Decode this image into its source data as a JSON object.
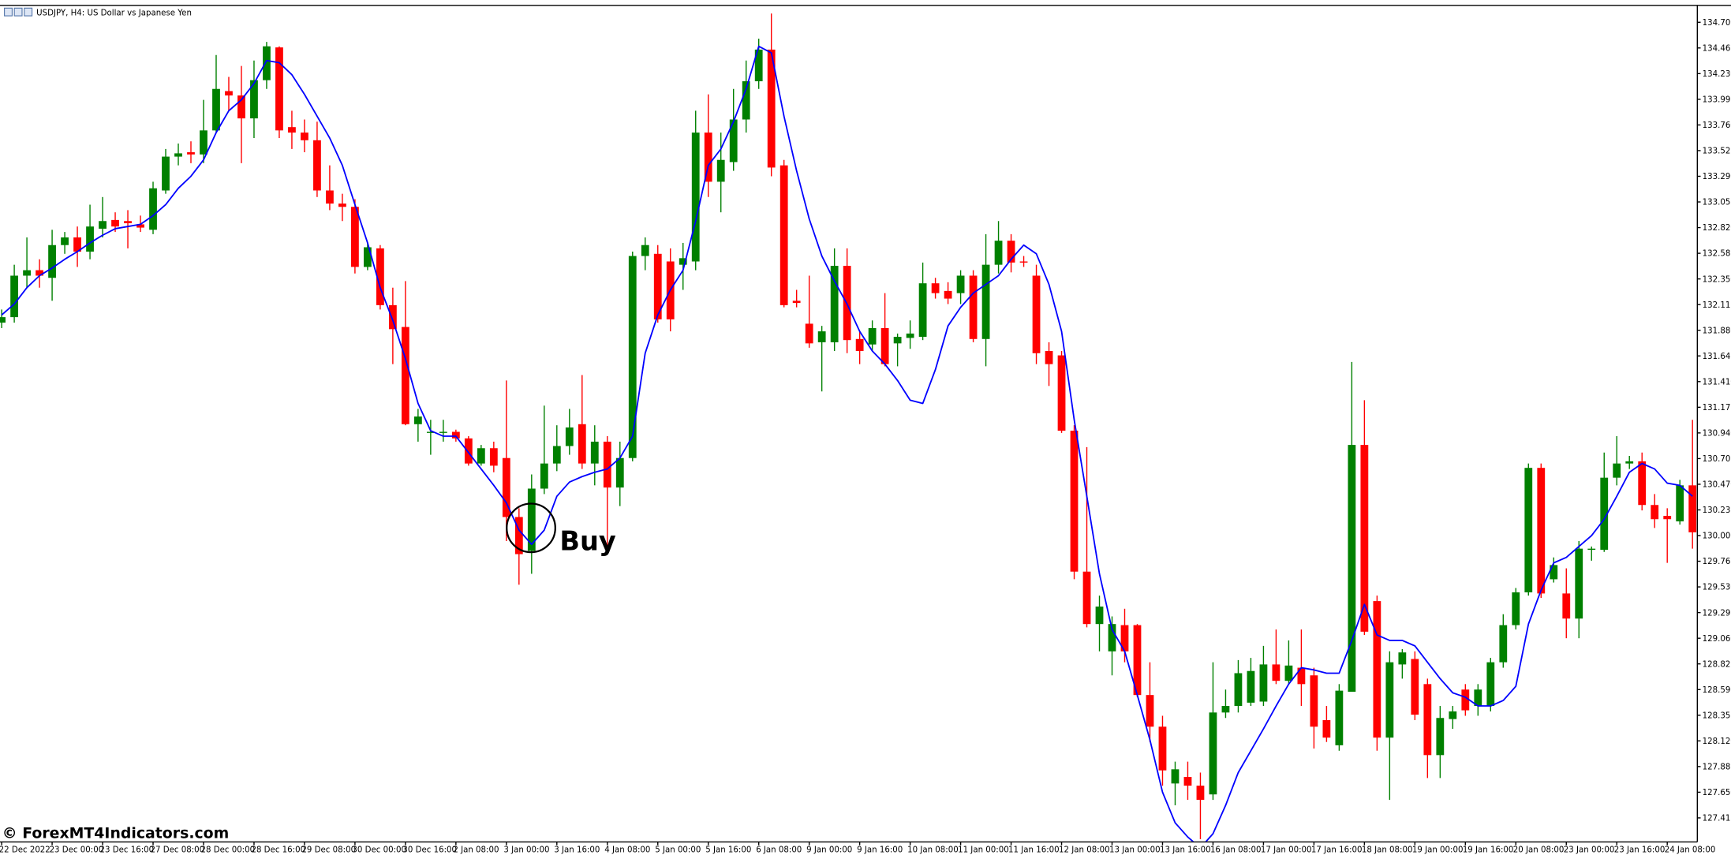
{
  "chart_data": {
    "type": "candlestick",
    "title": "USDJPY, H4:  US Dollar vs Japanese Yen",
    "annotation": "Buy",
    "up_color": "#008000",
    "down_color": "#ff0000",
    "categories": [
      "22 Dec 2022",
      null,
      null,
      null,
      "23 Dec 00:00",
      null,
      null,
      null,
      "23 Dec 16:00",
      null,
      null,
      null,
      "27 Dec 08:00",
      null,
      null,
      null,
      "28 Dec 00:00",
      null,
      null,
      null,
      "28 Dec 16:00",
      null,
      null,
      null,
      "29 Dec 08:00",
      null,
      null,
      null,
      "30 Dec 00:00",
      null,
      null,
      null,
      "30 Dec 16:00",
      null,
      null,
      null,
      "2 Jan 08:00",
      null,
      null,
      null,
      "3 Jan 00:00",
      null,
      null,
      null,
      "3 Jan 16:00",
      null,
      null,
      null,
      "4 Jan 08:00",
      null,
      null,
      null,
      "5 Jan 00:00",
      null,
      null,
      null,
      "5 Jan 16:00",
      null,
      null,
      null,
      "6 Jan 08:00",
      null,
      null,
      null,
      "9 Jan 00:00",
      null,
      null,
      null,
      "9 Jan 16:00",
      null,
      null,
      null,
      "10 Jan 08:00",
      null,
      null,
      null,
      "11 Jan 00:00",
      null,
      null,
      null,
      "11 Jan 16:00",
      null,
      null,
      null,
      "12 Jan 08:00",
      null,
      null,
      null,
      "13 Jan 00:00",
      null,
      null,
      null,
      "13 Jan 16:00",
      null,
      null,
      null,
      "16 Jan 08:00",
      null,
      null,
      null,
      "17 Jan 00:00",
      null,
      null,
      null,
      "17 Jan 16:00",
      null,
      null,
      null,
      "18 Jan 08:00",
      null,
      null,
      null,
      "19 Jan 00:00",
      null,
      null,
      null,
      "19 Jan 16:00",
      null,
      null,
      null,
      "20 Jan 08:00",
      null,
      null,
      null,
      "23 Jan 00:00",
      null,
      null,
      null,
      "23 Jan 16:00",
      null,
      null,
      null,
      "24 Jan 08:00",
      null,
      null
    ],
    "open": [
      131.95,
      132.0,
      132.38,
      132.43,
      132.36,
      132.66,
      132.73,
      132.6,
      132.81,
      132.89,
      132.88,
      132.85,
      132.8,
      133.16,
      133.47,
      133.51,
      133.49,
      133.71,
      134.07,
      134.03,
      133.82,
      134.17,
      134.47,
      133.74,
      133.69,
      133.62,
      133.16,
      133.04,
      133.01,
      132.46,
      132.63,
      132.11,
      131.91,
      131.02,
      130.94,
      130.94,
      130.95,
      130.89,
      130.66,
      130.8,
      130.71,
      130.17,
      129.86,
      130.43,
      130.66,
      130.82,
      131.02,
      130.66,
      130.86,
      130.44,
      130.71,
      132.56,
      132.58,
      132.51,
      132.48,
      132.51,
      133.69,
      133.24,
      133.42,
      133.81,
      134.16,
      134.45,
      133.39,
      132.15,
      131.94,
      131.77,
      131.77,
      132.47,
      131.8,
      131.75,
      131.9,
      131.76,
      131.81,
      131.82,
      132.31,
      132.24,
      132.22,
      132.38,
      131.8,
      132.48,
      132.7,
      132.51,
      132.38,
      131.69,
      131.65,
      130.96,
      129.67,
      129.19,
      128.94,
      129.18,
      129.18,
      128.54,
      128.25,
      127.73,
      127.79,
      127.71,
      127.63,
      128.38,
      128.44,
      128.47,
      128.48,
      128.82,
      128.67,
      128.79,
      128.72,
      128.31,
      128.08,
      128.57,
      130.83,
      129.4,
      128.15,
      128.82,
      128.87,
      128.64,
      127.99,
      128.32,
      128.59,
      128.44,
      128.44,
      128.84,
      129.18,
      129.48,
      130.62,
      129.6,
      129.47,
      129.24,
      129.87,
      129.87,
      130.53,
      130.66,
      130.68,
      130.28,
      130.18,
      130.13,
      130.46
    ],
    "high": [
      132.07,
      132.48,
      132.73,
      132.53,
      132.8,
      132.78,
      132.83,
      133.03,
      133.1,
      132.96,
      132.98,
      132.93,
      133.24,
      133.54,
      133.59,
      133.61,
      133.99,
      134.4,
      134.2,
      134.3,
      134.35,
      134.52,
      134.48,
      133.89,
      133.81,
      133.79,
      133.39,
      133.13,
      133.08,
      132.68,
      132.66,
      132.27,
      132.33,
      131.16,
      131.06,
      131.06,
      130.97,
      130.91,
      130.83,
      130.86,
      131.42,
      130.25,
      130.56,
      131.19,
      131.01,
      131.16,
      131.47,
      131.01,
      130.91,
      130.86,
      132.6,
      132.73,
      132.66,
      132.63,
      132.68,
      133.89,
      134.04,
      133.69,
      134.09,
      134.35,
      134.55,
      134.78,
      133.44,
      132.25,
      132.38,
      131.92,
      132.63,
      132.63,
      131.87,
      131.97,
      132.22,
      131.85,
      131.97,
      132.5,
      132.36,
      132.32,
      132.43,
      132.43,
      132.76,
      132.88,
      132.76,
      132.56,
      132.48,
      131.77,
      131.69,
      131.01,
      130.81,
      129.45,
      129.26,
      129.33,
      129.19,
      128.84,
      128.35,
      127.93,
      127.93,
      127.83,
      128.84,
      128.59,
      128.86,
      128.88,
      128.99,
      129.14,
      129.04,
      129.14,
      128.79,
      128.44,
      128.64,
      131.59,
      131.24,
      129.45,
      128.94,
      128.96,
      128.94,
      128.69,
      128.44,
      128.44,
      128.64,
      128.64,
      128.88,
      129.28,
      129.52,
      130.66,
      130.66,
      129.8,
      129.7,
      129.95,
      129.9,
      130.76,
      130.91,
      130.73,
      130.76,
      130.38,
      130.25,
      130.51,
      131.06
    ],
    "low": [
      131.9,
      131.95,
      132.27,
      132.27,
      132.15,
      132.58,
      132.46,
      132.53,
      132.73,
      132.78,
      132.63,
      132.78,
      132.76,
      133.13,
      133.39,
      133.41,
      133.41,
      133.69,
      133.89,
      133.41,
      133.64,
      134.09,
      133.64,
      133.54,
      133.51,
      133.1,
      132.98,
      132.88,
      132.4,
      132.43,
      132.07,
      131.57,
      131.01,
      130.86,
      130.74,
      130.86,
      130.86,
      130.64,
      130.64,
      130.58,
      129.95,
      129.55,
      129.65,
      130.38,
      130.59,
      130.74,
      130.61,
      130.46,
      129.85,
      130.27,
      130.68,
      132.43,
      131.95,
      131.87,
      132.25,
      132.43,
      133.1,
      132.96,
      133.34,
      133.69,
      134.09,
      133.29,
      132.09,
      132.09,
      131.72,
      131.32,
      131.69,
      131.67,
      131.57,
      131.69,
      131.55,
      131.55,
      131.71,
      131.79,
      132.17,
      132.12,
      132.12,
      131.77,
      131.55,
      132.4,
      132.41,
      132.46,
      131.57,
      131.37,
      130.94,
      129.6,
      129.16,
      128.94,
      128.72,
      128.84,
      128.52,
      128.11,
      127.71,
      127.53,
      127.58,
      127.22,
      127.58,
      128.33,
      128.38,
      128.44,
      128.44,
      128.64,
      128.64,
      128.44,
      128.05,
      128.11,
      128.03,
      128.57,
      129.09,
      128.03,
      127.58,
      128.69,
      128.31,
      127.78,
      127.78,
      128.23,
      128.35,
      128.35,
      128.39,
      128.79,
      129.14,
      129.45,
      129.43,
      129.57,
      129.06,
      129.06,
      129.77,
      129.85,
      130.46,
      130.61,
      130.23,
      130.07,
      129.75,
      130.1,
      129.88
    ],
    "close": [
      132.0,
      132.38,
      132.43,
      132.38,
      132.66,
      132.73,
      132.6,
      132.83,
      132.88,
      132.83,
      132.86,
      132.82,
      133.18,
      133.47,
      133.5,
      133.49,
      133.71,
      134.09,
      134.03,
      133.82,
      134.17,
      134.48,
      133.71,
      133.69,
      133.62,
      133.16,
      133.04,
      133.01,
      132.46,
      132.64,
      132.11,
      131.89,
      131.02,
      131.09,
      130.95,
      130.95,
      130.89,
      130.66,
      130.8,
      130.64,
      130.17,
      129.83,
      130.43,
      130.66,
      130.82,
      130.99,
      130.66,
      130.86,
      130.44,
      130.71,
      132.56,
      132.66,
      131.98,
      131.98,
      132.54,
      133.69,
      133.24,
      133.44,
      133.81,
      134.16,
      134.45,
      133.37,
      132.11,
      132.13,
      131.76,
      131.87,
      132.47,
      131.79,
      131.69,
      131.9,
      131.57,
      131.82,
      131.85,
      132.31,
      132.22,
      132.17,
      132.38,
      131.8,
      132.48,
      132.7,
      132.5,
      132.5,
      131.67,
      131.57,
      130.96,
      129.67,
      129.19,
      129.35,
      129.19,
      128.94,
      128.54,
      128.25,
      127.85,
      127.86,
      127.71,
      127.58,
      128.38,
      128.44,
      128.74,
      128.76,
      128.82,
      128.67,
      128.81,
      128.64,
      128.25,
      128.15,
      128.58,
      130.83,
      129.12,
      128.15,
      128.84,
      128.93,
      128.36,
      127.99,
      128.33,
      128.39,
      128.4,
      128.59,
      128.84,
      129.18,
      129.48,
      130.62,
      129.47,
      129.73,
      129.24,
      129.88,
      129.88,
      130.53,
      130.66,
      130.68,
      130.28,
      130.15,
      130.15,
      130.46,
      130.03
    ],
    "line": {
      "color": "#0000ff",
      "values": [
        132.02,
        132.12,
        132.27,
        132.38,
        132.45,
        132.53,
        132.6,
        132.68,
        132.75,
        132.81,
        132.83,
        132.85,
        132.93,
        133.03,
        133.18,
        133.29,
        133.44,
        133.69,
        133.89,
        133.99,
        134.14,
        134.35,
        134.33,
        134.22,
        134.04,
        133.84,
        133.64,
        133.39,
        133.03,
        132.68,
        132.27,
        131.97,
        131.62,
        131.21,
        130.96,
        130.91,
        130.91,
        130.76,
        130.61,
        130.46,
        130.3,
        130.05,
        129.92,
        130.05,
        130.36,
        130.49,
        130.54,
        130.58,
        130.61,
        130.71,
        130.91,
        131.67,
        132.02,
        132.25,
        132.43,
        132.88,
        133.39,
        133.54,
        133.79,
        134.09,
        134.48,
        134.42,
        133.84,
        133.34,
        132.9,
        132.56,
        132.33,
        132.12,
        131.87,
        131.69,
        131.57,
        131.42,
        131.24,
        131.21,
        131.52,
        131.92,
        132.09,
        132.22,
        132.3,
        132.38,
        132.53,
        132.66,
        132.58,
        132.3,
        131.87,
        131.06,
        130.36,
        129.65,
        129.14,
        128.94,
        128.54,
        128.13,
        127.65,
        127.37,
        127.24,
        127.14,
        127.27,
        127.53,
        127.83,
        128.03,
        128.23,
        128.44,
        128.64,
        128.79,
        128.77,
        128.74,
        128.74,
        129.04,
        129.37,
        129.09,
        129.04,
        129.04,
        128.99,
        128.84,
        128.69,
        128.56,
        128.52,
        128.44,
        128.44,
        128.49,
        128.62,
        129.19,
        129.5,
        129.75,
        129.8,
        129.9,
        130.0,
        130.15,
        130.36,
        130.58,
        130.66,
        130.61,
        130.48,
        130.46,
        130.36
      ]
    },
    "ylim": [
      127.2,
      134.85
    ],
    "yticks": [
      127.415,
      {
        "value": 127.65,
        "label": "127.650"
      },
      127.885,
      {
        "value": 128.12,
        "label": "128.120"
      },
      128.355,
      {
        "value": 128.59,
        "label": "128.590"
      },
      128.825,
      {
        "value": 129.06,
        "label": "129.060"
      },
      129.295,
      {
        "value": 129.53,
        "label": "129.530"
      },
      129.765,
      {
        "value": 130,
        "label": "130.000"
      },
      130.235,
      {
        "value": 130.47,
        "label": "130.470"
      },
      130.705,
      {
        "value": 130.94,
        "label": "130.940"
      },
      131.175,
      {
        "value": 131.41,
        "label": "131.410"
      },
      131.645,
      {
        "value": 131.88,
        "label": "131.880"
      },
      132.115,
      {
        "value": 132.35,
        "label": "132.350"
      },
      132.585,
      {
        "value": 132.82,
        "label": "132.820"
      },
      133.055,
      {
        "value": 133.29,
        "label": "133.290"
      },
      133.525,
      {
        "value": 133.76,
        "label": "133.760"
      },
      133.995,
      {
        "value": 134.23,
        "label": "134.230"
      },
      134.465,
      {
        "value": 134.7,
        "label": "134.700"
      }
    ]
  },
  "watermark": "© ForexMT4Indicators.com"
}
